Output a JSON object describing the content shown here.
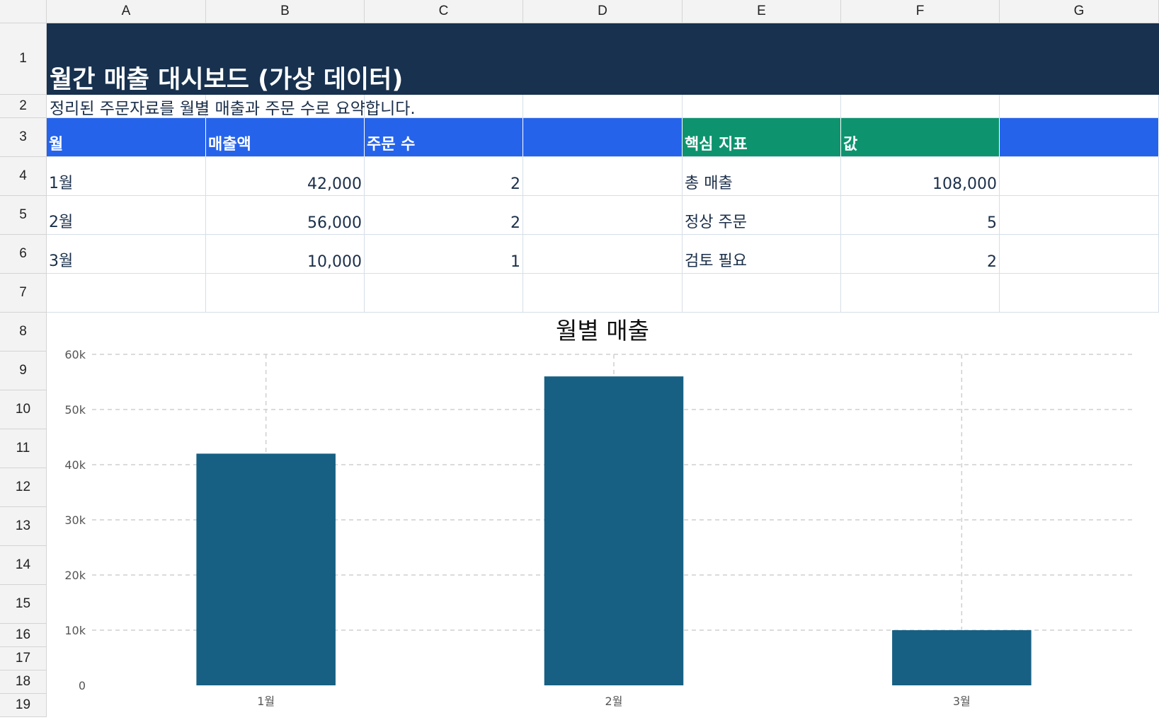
{
  "columns": [
    "A",
    "B",
    "C",
    "D",
    "E",
    "F",
    "G"
  ],
  "rows": [
    "1",
    "2",
    "3",
    "4",
    "5",
    "6",
    "7",
    "8",
    "9",
    "10",
    "11",
    "12",
    "13",
    "14",
    "15",
    "16",
    "17",
    "18",
    "19"
  ],
  "sheet": {
    "title": "월간 매출 대시보드 (가상 데이터)",
    "subtitle": "정리된 주문자료를 월별 매출과 주문 수로 요약합니다.",
    "table_headers": {
      "month": "월",
      "sales": "매출액",
      "orders": "주문 수"
    },
    "table_rows": [
      {
        "month": "1월",
        "sales": "42,000",
        "orders": "2"
      },
      {
        "month": "2월",
        "sales": "56,000",
        "orders": "2"
      },
      {
        "month": "3월",
        "sales": "10,000",
        "orders": "1"
      }
    ],
    "kpi_headers": {
      "metric": "핵심 지표",
      "value": "값"
    },
    "kpis": [
      {
        "metric": "총 매출",
        "value": "108,000"
      },
      {
        "metric": "정상 주문",
        "value": "5"
      },
      {
        "metric": "검토 필요",
        "value": "2"
      }
    ]
  },
  "colors": {
    "title_band": "#17314f",
    "header_blue": "#2563eb",
    "header_green": "#0d946f",
    "bar": "#176083"
  },
  "chart_data": {
    "type": "bar",
    "title": "월별 매출",
    "categories": [
      "1월",
      "2월",
      "3월"
    ],
    "values": [
      42000,
      56000,
      10000
    ],
    "ylim": [
      0,
      60000
    ],
    "yticks": [
      0,
      10000,
      20000,
      30000,
      40000,
      50000,
      60000
    ],
    "ytick_labels": [
      "0",
      "10k",
      "20k",
      "30k",
      "40k",
      "50k",
      "60k"
    ],
    "grid": true,
    "xlabel": "",
    "ylabel": ""
  }
}
